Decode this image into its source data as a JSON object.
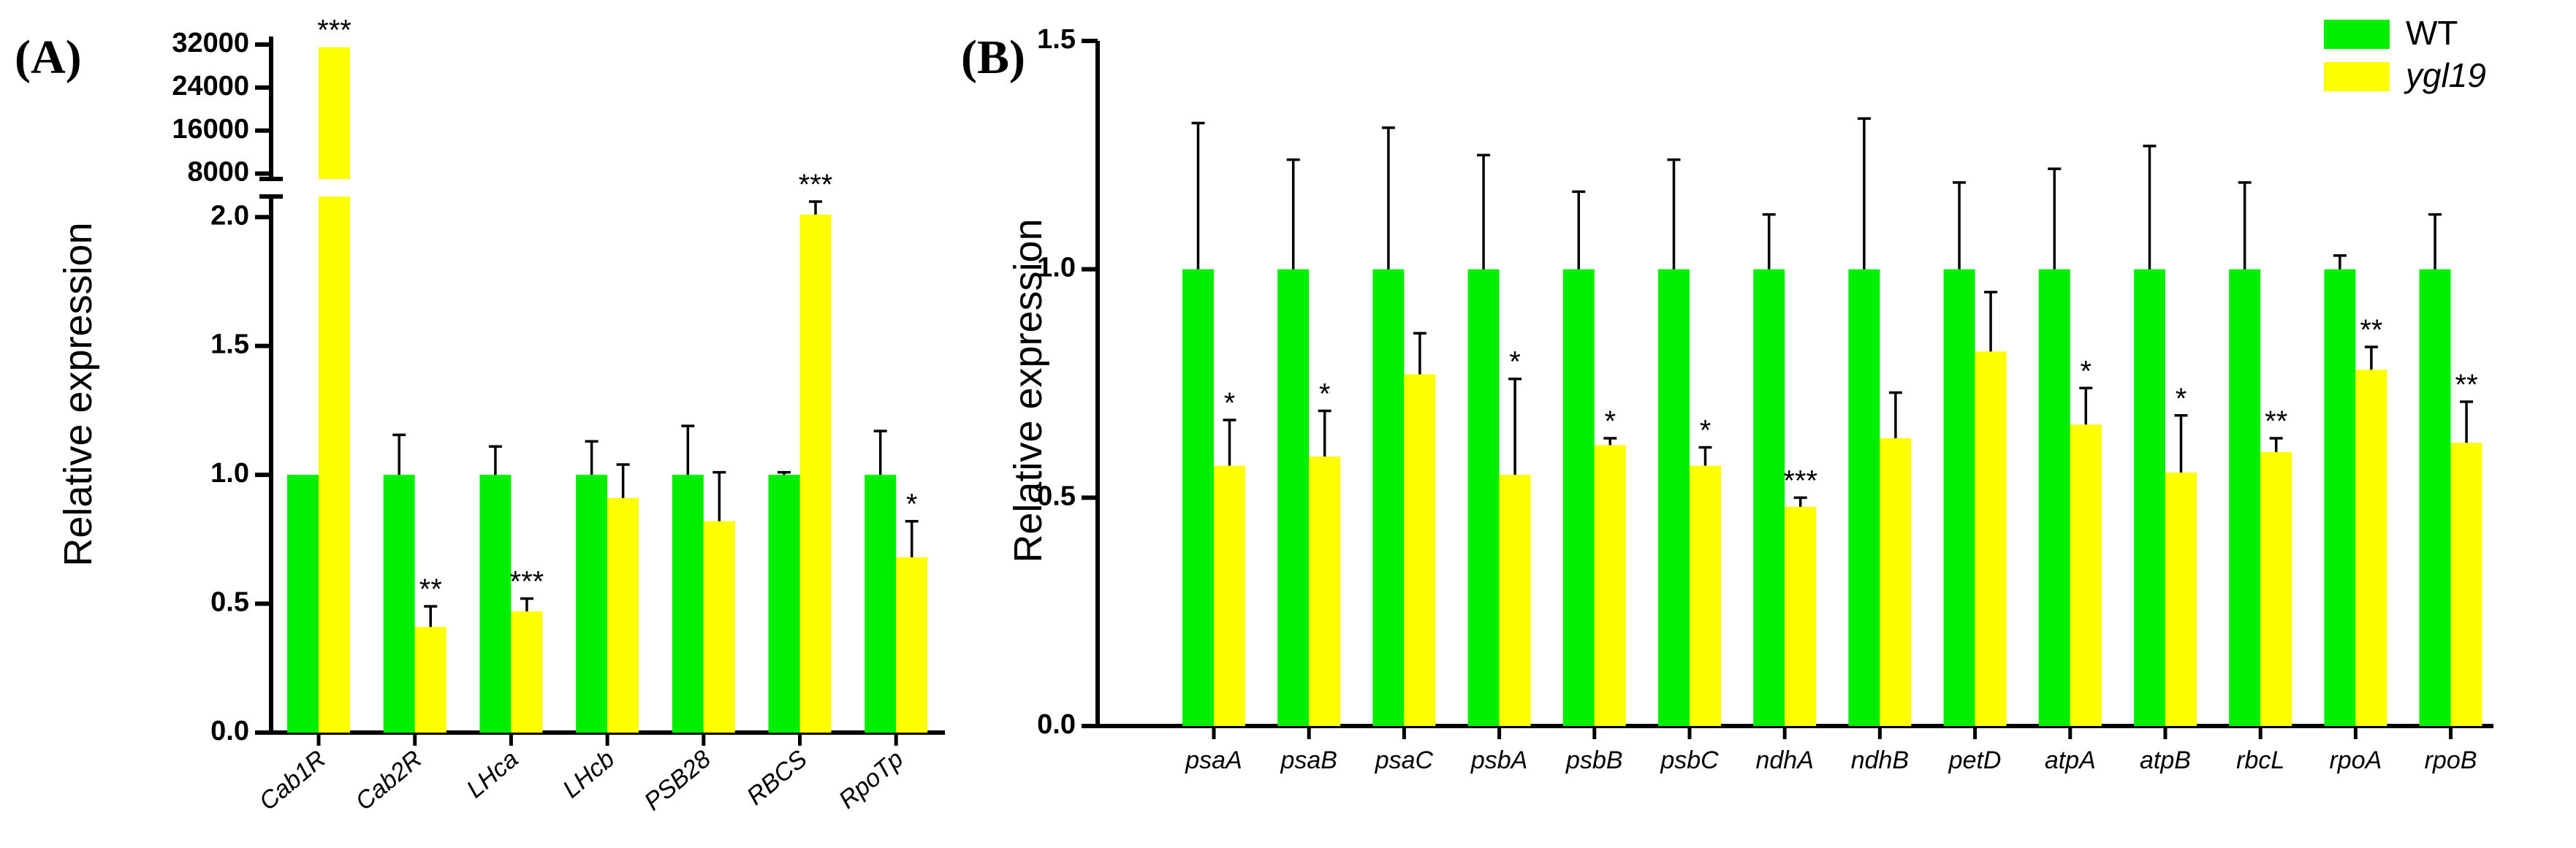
{
  "chart_data": [
    {
      "type": "bar",
      "panel_label": "(A)",
      "y_label": "Relative expression",
      "categories": [
        "Cab1R",
        "Cab2R",
        "LHca",
        "LHcb",
        "PSB28",
        "RBCS",
        "RpoTp"
      ],
      "series": [
        {
          "name": "WT",
          "color": "#00ee00",
          "values": [
            1,
            1,
            1,
            1,
            1,
            1,
            1
          ],
          "errors": [
            null,
            0.155,
            0.11,
            0.13,
            0.19,
            0.01,
            0.17
          ]
        },
        {
          "name": "ygl19",
          "color": "#ffff00",
          "values": [
            31500,
            0.41,
            0.47,
            0.91,
            0.82,
            2.01,
            0.68
          ],
          "errors": [
            null,
            0.08,
            0.05,
            0.13,
            0.19,
            0.05,
            0.14
          ],
          "significance": [
            "***",
            "**",
            "***",
            null,
            null,
            "***",
            "*"
          ]
        }
      ],
      "ylim": [
        0,
        2.08
      ],
      "yticks": [
        {
          "value": 0,
          "label": "0.0"
        },
        {
          "value": 0.5,
          "label": "0.5"
        },
        {
          "value": 1,
          "label": "1.0"
        },
        {
          "value": 1.5,
          "label": "1.5"
        },
        {
          "value": 2,
          "label": "2.0"
        }
      ],
      "y_break": true,
      "ylim_upper": [
        7000,
        33500
      ],
      "yticks_upper": [
        8000,
        16000,
        24000,
        32000
      ]
    },
    {
      "type": "bar",
      "panel_label": "(B)",
      "y_label": "Relative expression",
      "categories": [
        "psaA",
        "psaB",
        "psaC",
        "psbA",
        "psbB",
        "psbC",
        "ndhA",
        "ndhB",
        "petD",
        "atpA",
        "atpB",
        "rbcL",
        "rpoA",
        "rpoB"
      ],
      "series": [
        {
          "name": "WT",
          "color": "#00ee00",
          "values": [
            1,
            1,
            1,
            1,
            1,
            1,
            1,
            1,
            1,
            1,
            1,
            1,
            1,
            1
          ],
          "errors": [
            0.32,
            0.24,
            0.31,
            0.25,
            0.17,
            0.24,
            0.12,
            0.33,
            0.19,
            0.22,
            0.27,
            0.19,
            0.03,
            0.12
          ]
        },
        {
          "name": "ygl19",
          "color": "#ffff00",
          "values": [
            0.57,
            0.59,
            0.77,
            0.55,
            0.615,
            0.57,
            0.48,
            0.63,
            0.82,
            0.66,
            0.555,
            0.6,
            0.78,
            0.62
          ],
          "errors": [
            0.1,
            0.1,
            0.09,
            0.21,
            0.015,
            0.04,
            0.02,
            0.1,
            0.13,
            0.08,
            0.125,
            0.03,
            0.05,
            0.09
          ],
          "significance": [
            "*",
            "*",
            null,
            "*",
            "*",
            "*",
            "***",
            null,
            null,
            "*",
            "*",
            "**",
            "**",
            "**"
          ]
        }
      ],
      "ylim": [
        0,
        1.5
      ],
      "yticks": [
        {
          "value": 0,
          "label": "0.0"
        },
        {
          "value": 0.5,
          "label": "0.5"
        },
        {
          "value": 1,
          "label": "1.0"
        },
        {
          "value": 1.5,
          "label": "1.5"
        }
      ],
      "legend": "upper right"
    }
  ]
}
